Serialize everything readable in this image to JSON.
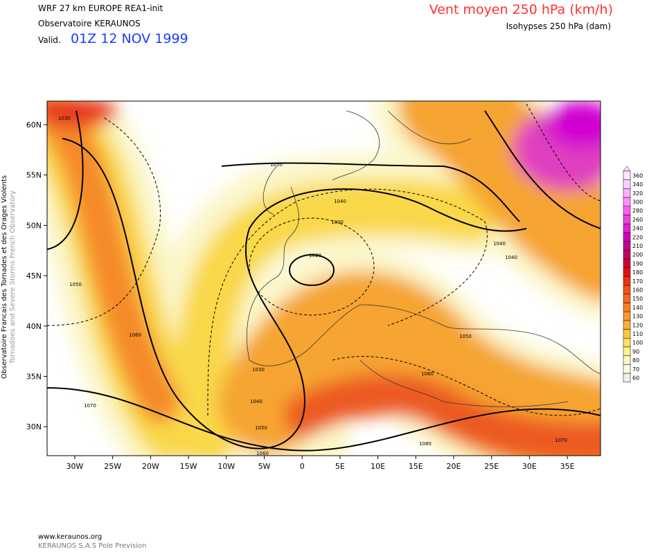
{
  "header": {
    "model": "WRF 27 km EUROPE  REA1-init",
    "org": "Observatoire KERAUNOS",
    "valid_label": "Valid.",
    "valid_time": "01Z 12 NOV 1999",
    "title": "Vent moyen 250 hPa (km/h)",
    "subtitle": "Isohypses 250 hPa (dam)"
  },
  "side_text": [
    "Observatoire Francais des Tornades et des Orages Violents",
    "Tornadoes and Severe Storms French Observatory"
  ],
  "map": {
    "lat_labels": [
      "60N",
      "55N",
      "50N",
      "45N",
      "40N",
      "35N",
      "30N"
    ],
    "lon_labels": [
      "30W",
      "25W",
      "20W",
      "15W",
      "10W",
      "5W",
      "0",
      "5E",
      "10E",
      "15E",
      "20E",
      "25E",
      "30E",
      "35E"
    ],
    "contour_labels": [
      "1030",
      "1050",
      "1040",
      "1030",
      "1020",
      "1040",
      "1040",
      "1050",
      "1060",
      "1050",
      "1060",
      "1070",
      "1030",
      "1040",
      "1050",
      "1060",
      "1080",
      "1070"
    ]
  },
  "colorbar": {
    "labels": [
      "360",
      "340",
      "320",
      "300",
      "280",
      "260",
      "240",
      "220",
      "210",
      "200",
      "190",
      "180",
      "170",
      "160",
      "150",
      "140",
      "130",
      "120",
      "110",
      "100",
      "90",
      "80",
      "70",
      "60"
    ]
  },
  "footer": [
    "www.keraunos.org",
    "KERAUNOS S.A.S Pole Prevision"
  ]
}
